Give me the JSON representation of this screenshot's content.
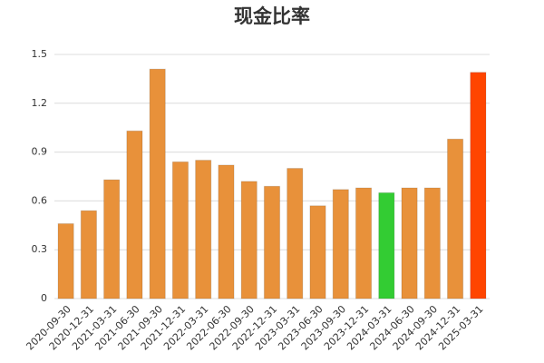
{
  "chart_data": {
    "type": "bar",
    "title": "现金比率",
    "categories": [
      "2020-09-30",
      "2020-12-31",
      "2021-03-31",
      "2021-06-30",
      "2021-09-30",
      "2021-12-31",
      "2022-03-31",
      "2022-06-30",
      "2022-09-30",
      "2022-12-31",
      "2023-03-31",
      "2023-06-30",
      "2023-09-30",
      "2023-12-31",
      "2024-03-31",
      "2024-06-30",
      "2024-09-30",
      "2024-12-31",
      "2025-03-31"
    ],
    "values": [
      0.46,
      0.54,
      0.73,
      1.03,
      1.41,
      0.84,
      0.85,
      0.82,
      0.72,
      0.69,
      0.8,
      0.57,
      0.67,
      0.68,
      0.65,
      0.68,
      0.68,
      0.98,
      1.39
    ],
    "colors": [
      "#e8913a",
      "#e8913a",
      "#e8913a",
      "#e8913a",
      "#e8913a",
      "#e8913a",
      "#e8913a",
      "#e8913a",
      "#e8913a",
      "#e8913a",
      "#e8913a",
      "#e8913a",
      "#e8913a",
      "#e8913a",
      "#33cc33",
      "#e8913a",
      "#e8913a",
      "#e8913a",
      "#ff4500"
    ],
    "ylim": [
      0,
      1.5
    ],
    "yticks": [
      0,
      0.3,
      0.6,
      0.9,
      1.2,
      1.5
    ],
    "grid": true
  }
}
